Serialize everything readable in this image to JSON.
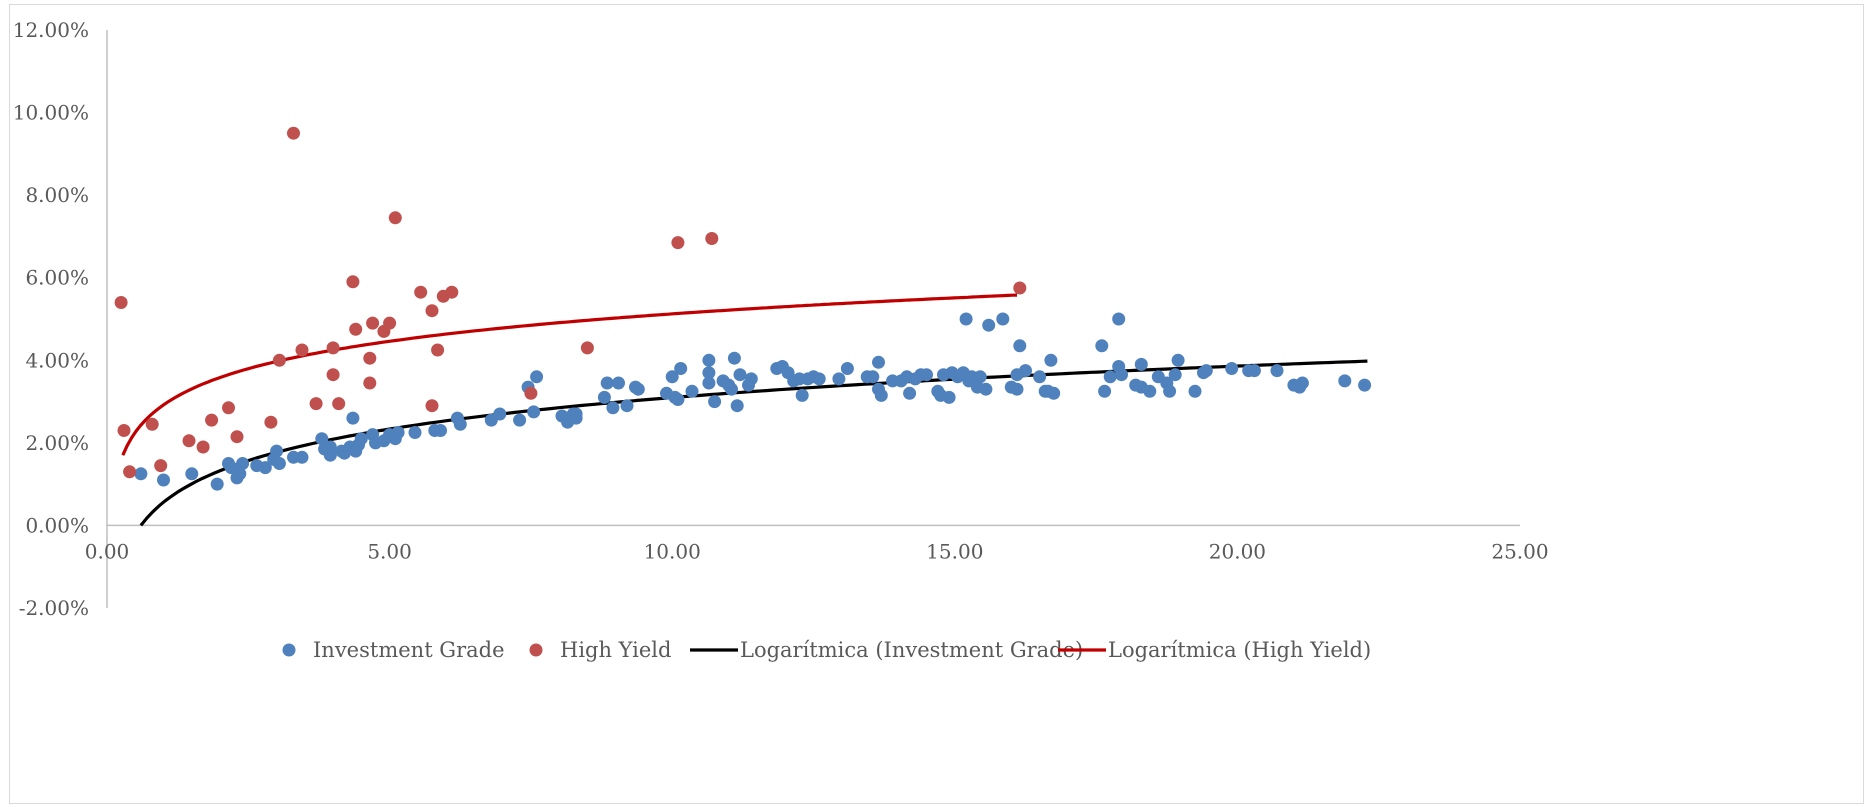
{
  "chart_data": {
    "type": "scatter",
    "xlim": [
      0,
      25
    ],
    "ylim": [
      -0.02,
      0.12
    ],
    "x_ticks": [
      0,
      5,
      10,
      15,
      20,
      25
    ],
    "x_tick_labels": [
      "0.00",
      "5.00",
      "10.00",
      "15.00",
      "20.00",
      "25.00"
    ],
    "y_ticks": [
      -0.02,
      0,
      0.02,
      0.04,
      0.06,
      0.08,
      0.1,
      0.12
    ],
    "y_tick_labels": [
      "-2.00%",
      "0.00%",
      "2.00%",
      "4.00%",
      "6.00%",
      "8.00%",
      "10.00%",
      "12.00%"
    ],
    "grid": false,
    "legend_position": "bottom",
    "series": [
      {
        "name": "Investment Grade",
        "kind": "scatter",
        "color": "#4f81bd",
        "points": [
          [
            0.6,
            0.0125
          ],
          [
            1.0,
            0.011
          ],
          [
            1.5,
            0.0125
          ],
          [
            1.95,
            0.01
          ],
          [
            2.15,
            0.015
          ],
          [
            2.2,
            0.014
          ],
          [
            2.3,
            0.0115
          ],
          [
            2.35,
            0.0125
          ],
          [
            2.4,
            0.015
          ],
          [
            2.65,
            0.0145
          ],
          [
            2.8,
            0.014
          ],
          [
            2.95,
            0.016
          ],
          [
            3.0,
            0.018
          ],
          [
            3.05,
            0.015
          ],
          [
            3.3,
            0.0165
          ],
          [
            3.45,
            0.0165
          ],
          [
            3.8,
            0.021
          ],
          [
            3.85,
            0.0185
          ],
          [
            3.95,
            0.019
          ],
          [
            3.95,
            0.017
          ],
          [
            4.15,
            0.018
          ],
          [
            4.2,
            0.0175
          ],
          [
            4.3,
            0.019
          ],
          [
            4.35,
            0.026
          ],
          [
            4.4,
            0.018
          ],
          [
            4.45,
            0.0195
          ],
          [
            4.5,
            0.021
          ],
          [
            4.7,
            0.022
          ],
          [
            4.75,
            0.02
          ],
          [
            4.9,
            0.0205
          ],
          [
            5.0,
            0.022
          ],
          [
            5.1,
            0.021
          ],
          [
            5.15,
            0.0225
          ],
          [
            5.45,
            0.0225
          ],
          [
            5.8,
            0.023
          ],
          [
            5.9,
            0.023
          ],
          [
            6.2,
            0.026
          ],
          [
            6.25,
            0.0245
          ],
          [
            6.8,
            0.0255
          ],
          [
            6.95,
            0.027
          ],
          [
            7.3,
            0.0255
          ],
          [
            7.45,
            0.0335
          ],
          [
            7.6,
            0.036
          ],
          [
            7.55,
            0.0275
          ],
          [
            8.05,
            0.0265
          ],
          [
            8.15,
            0.025
          ],
          [
            8.25,
            0.027
          ],
          [
            8.3,
            0.026
          ],
          [
            8.3,
            0.027
          ],
          [
            8.8,
            0.031
          ],
          [
            8.85,
            0.0345
          ],
          [
            8.95,
            0.0285
          ],
          [
            9.05,
            0.0345
          ],
          [
            9.2,
            0.029
          ],
          [
            9.35,
            0.0335
          ],
          [
            9.4,
            0.033
          ],
          [
            9.9,
            0.032
          ],
          [
            10.0,
            0.036
          ],
          [
            10.05,
            0.031
          ],
          [
            10.1,
            0.0305
          ],
          [
            10.15,
            0.038
          ],
          [
            10.35,
            0.0325
          ],
          [
            10.65,
            0.04
          ],
          [
            10.65,
            0.037
          ],
          [
            10.65,
            0.0345
          ],
          [
            10.75,
            0.03
          ],
          [
            10.9,
            0.035
          ],
          [
            11.0,
            0.034
          ],
          [
            11.05,
            0.033
          ],
          [
            11.1,
            0.0405
          ],
          [
            11.15,
            0.029
          ],
          [
            11.2,
            0.0365
          ],
          [
            11.35,
            0.034
          ],
          [
            11.4,
            0.0355
          ],
          [
            11.85,
            0.038
          ],
          [
            11.95,
            0.0385
          ],
          [
            12.05,
            0.037
          ],
          [
            12.15,
            0.035
          ],
          [
            12.25,
            0.0355
          ],
          [
            12.3,
            0.0315
          ],
          [
            12.4,
            0.0355
          ],
          [
            12.5,
            0.036
          ],
          [
            12.6,
            0.0355
          ],
          [
            12.95,
            0.0355
          ],
          [
            13.1,
            0.038
          ],
          [
            13.45,
            0.036
          ],
          [
            13.55,
            0.036
          ],
          [
            13.65,
            0.033
          ],
          [
            13.7,
            0.0315
          ],
          [
            13.65,
            0.0395
          ],
          [
            13.9,
            0.035
          ],
          [
            14.05,
            0.035
          ],
          [
            14.15,
            0.036
          ],
          [
            14.2,
            0.032
          ],
          [
            14.3,
            0.0355
          ],
          [
            14.4,
            0.0365
          ],
          [
            14.5,
            0.0365
          ],
          [
            14.7,
            0.0325
          ],
          [
            14.75,
            0.0315
          ],
          [
            14.8,
            0.0365
          ],
          [
            14.9,
            0.031
          ],
          [
            14.95,
            0.037
          ],
          [
            15.05,
            0.036
          ],
          [
            15.15,
            0.037
          ],
          [
            15.2,
            0.05
          ],
          [
            15.25,
            0.035
          ],
          [
            15.3,
            0.036
          ],
          [
            15.4,
            0.0335
          ],
          [
            15.45,
            0.036
          ],
          [
            15.55,
            0.033
          ],
          [
            15.6,
            0.0485
          ],
          [
            15.85,
            0.05
          ],
          [
            16.0,
            0.0335
          ],
          [
            16.1,
            0.033
          ],
          [
            16.1,
            0.0365
          ],
          [
            16.15,
            0.0435
          ],
          [
            16.25,
            0.0375
          ],
          [
            16.5,
            0.036
          ],
          [
            16.6,
            0.0325
          ],
          [
            16.65,
            0.0325
          ],
          [
            16.7,
            0.04
          ],
          [
            16.75,
            0.032
          ],
          [
            17.6,
            0.0435
          ],
          [
            17.65,
            0.0325
          ],
          [
            17.75,
            0.036
          ],
          [
            17.9,
            0.0385
          ],
          [
            17.9,
            0.05
          ],
          [
            17.95,
            0.0365
          ],
          [
            18.2,
            0.034
          ],
          [
            18.3,
            0.0335
          ],
          [
            18.3,
            0.039
          ],
          [
            18.45,
            0.0325
          ],
          [
            18.6,
            0.036
          ],
          [
            18.75,
            0.0345
          ],
          [
            18.8,
            0.0325
          ],
          [
            18.9,
            0.0365
          ],
          [
            18.95,
            0.04
          ],
          [
            19.25,
            0.0325
          ],
          [
            19.4,
            0.037
          ],
          [
            19.45,
            0.0375
          ],
          [
            19.9,
            0.038
          ],
          [
            20.2,
            0.0375
          ],
          [
            20.3,
            0.0375
          ],
          [
            20.7,
            0.0375
          ],
          [
            21.0,
            0.034
          ],
          [
            21.1,
            0.0335
          ],
          [
            21.15,
            0.0345
          ],
          [
            21.9,
            0.035
          ],
          [
            22.25,
            0.034
          ]
        ]
      },
      {
        "name": "High Yield",
        "kind": "scatter",
        "color": "#c0504d",
        "points": [
          [
            0.25,
            0.054
          ],
          [
            0.3,
            0.023
          ],
          [
            0.4,
            0.013
          ],
          [
            0.8,
            0.0245
          ],
          [
            0.95,
            0.0145
          ],
          [
            1.45,
            0.0205
          ],
          [
            1.7,
            0.019
          ],
          [
            1.85,
            0.0255
          ],
          [
            2.15,
            0.0285
          ],
          [
            2.3,
            0.0215
          ],
          [
            2.9,
            0.025
          ],
          [
            3.05,
            0.04
          ],
          [
            3.3,
            0.095
          ],
          [
            3.45,
            0.0425
          ],
          [
            3.7,
            0.0295
          ],
          [
            4.0,
            0.043
          ],
          [
            4.0,
            0.0365
          ],
          [
            4.1,
            0.0295
          ],
          [
            4.35,
            0.059
          ],
          [
            4.4,
            0.0475
          ],
          [
            4.65,
            0.0405
          ],
          [
            4.65,
            0.0345
          ],
          [
            4.7,
            0.049
          ],
          [
            4.9,
            0.047
          ],
          [
            5.0,
            0.049
          ],
          [
            5.1,
            0.0745
          ],
          [
            5.55,
            0.0565
          ],
          [
            5.75,
            0.029
          ],
          [
            5.75,
            0.052
          ],
          [
            5.85,
            0.0425
          ],
          [
            5.95,
            0.0555
          ],
          [
            6.1,
            0.0565
          ],
          [
            7.5,
            0.032
          ],
          [
            8.5,
            0.043
          ],
          [
            10.1,
            0.0685
          ],
          [
            10.7,
            0.0695
          ],
          [
            16.15,
            0.0575
          ]
        ]
      },
      {
        "name": "Logarítmica (Investment Grade)",
        "kind": "trendline",
        "color": "#000000",
        "x_range": [
          0.6,
          22.3
        ],
        "y_at_start": 0.0,
        "y_at_end": 0.0398
      },
      {
        "name": "Logarítmica (High Yield)",
        "kind": "trendline",
        "color": "#c00000",
        "x_range": [
          0.28,
          16.1
        ],
        "y_at_start": 0.017,
        "y_at_end": 0.0558
      }
    ]
  }
}
